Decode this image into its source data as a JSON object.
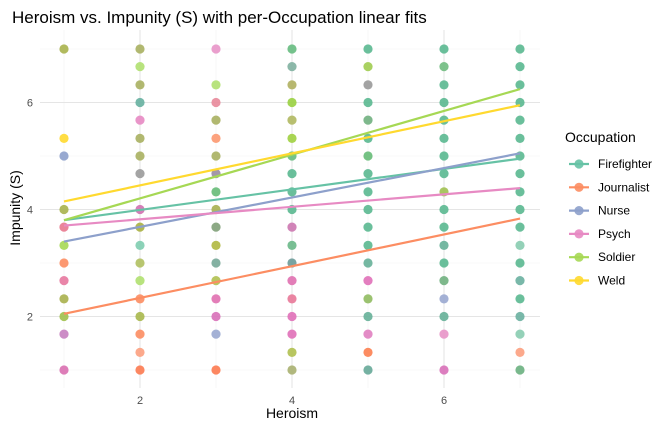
{
  "chart_data": {
    "type": "scatter",
    "title": "Heroism vs. Impunity (S) with per-Occupation linear fits",
    "xlabel": "Heroism",
    "ylabel": "Impunity (S)",
    "xlim": [
      0.7,
      7.3
    ],
    "ylim": [
      0.7,
      7.3
    ],
    "xticks": [
      2,
      4,
      6
    ],
    "yticks": [
      2,
      4,
      6
    ],
    "grid": true,
    "legend": {
      "title": "Occupation",
      "placement": "right"
    },
    "series": [
      {
        "name": "Firefighter",
        "color": "#66c2a5",
        "fit": [
          [
            1,
            3.8
          ],
          [
            7,
            4.95
          ]
        ]
      },
      {
        "name": "Journalist",
        "color": "#fc8d62",
        "fit": [
          [
            1,
            2.05
          ],
          [
            7,
            3.83
          ]
        ]
      },
      {
        "name": "Nurse",
        "color": "#8da0cb",
        "fit": [
          [
            1,
            3.4
          ],
          [
            7,
            5.05
          ]
        ]
      },
      {
        "name": "Psych",
        "color": "#e78ac3",
        "fit": [
          [
            1,
            3.7
          ],
          [
            7,
            4.4
          ]
        ]
      },
      {
        "name": "Soldier",
        "color": "#a6d854",
        "fit": [
          [
            1,
            3.8
          ],
          [
            7,
            6.25
          ]
        ]
      },
      {
        "name": "Weld",
        "color": "#ffd92f",
        "fit": [
          [
            1,
            4.15
          ],
          [
            7,
            5.95
          ]
        ]
      }
    ],
    "points": [
      [
        1,
        7,
        "#a8b24c"
      ],
      [
        1,
        5.33,
        "#ffd92f"
      ],
      [
        1,
        5,
        "#8da0cb"
      ],
      [
        1,
        4,
        "#a8b24c"
      ],
      [
        1,
        3.67,
        "#e8788e"
      ],
      [
        1,
        3.33,
        "#a6d854"
      ],
      [
        1,
        3,
        "#fc8d62"
      ],
      [
        1,
        2.67,
        "#e7789f"
      ],
      [
        1,
        2.33,
        "#a8b04c"
      ],
      [
        1,
        2,
        "#a0c04c"
      ],
      [
        1,
        1.67,
        "#c77fc0"
      ],
      [
        1,
        1,
        "#d96fb0"
      ],
      [
        2,
        7,
        "#a8b060"
      ],
      [
        2,
        6.67,
        "#b0e070"
      ],
      [
        2,
        6.33,
        "#a8b060"
      ],
      [
        2,
        6,
        "#66b0a0"
      ],
      [
        2,
        5.67,
        "#e78ac3"
      ],
      [
        2,
        5.33,
        "#a8b060"
      ],
      [
        2,
        5,
        "#a8b060"
      ],
      [
        2,
        4.67,
        "#9a9a9a"
      ],
      [
        2,
        4,
        "#d070b0"
      ],
      [
        2,
        3.67,
        "#a8b040"
      ],
      [
        2,
        3.33,
        "#7fcdb0"
      ],
      [
        2,
        3,
        "#b0c060"
      ],
      [
        2,
        2.67,
        "#b0e070"
      ],
      [
        2,
        2.33,
        "#fc8d62"
      ],
      [
        2,
        2,
        "#a8b84c"
      ],
      [
        2,
        1.67,
        "#fc8d62"
      ],
      [
        2,
        1.33,
        "#fca080"
      ],
      [
        2,
        1,
        "#fc7a50"
      ],
      [
        3,
        7,
        "#e895c8"
      ],
      [
        3,
        6.33,
        "#b0e070"
      ],
      [
        3,
        6,
        "#e8889a"
      ],
      [
        3,
        5.67,
        "#a8b060"
      ],
      [
        3,
        5.33,
        "#fc9870"
      ],
      [
        3,
        5,
        "#a8b060"
      ],
      [
        3,
        4.67,
        "#9a8ca0"
      ],
      [
        3,
        4.33,
        "#66bb77"
      ],
      [
        3,
        4,
        "#a8b050"
      ],
      [
        3,
        3.67,
        "#80a078"
      ],
      [
        3,
        3.33,
        "#b0b840"
      ],
      [
        3,
        3,
        "#77a898"
      ],
      [
        3,
        2.67,
        "#b0c050"
      ],
      [
        3,
        2.33,
        "#e070b0"
      ],
      [
        3,
        2,
        "#d870b8"
      ],
      [
        3,
        1.67,
        "#9aa8d0"
      ],
      [
        3,
        1,
        "#fc7a50"
      ],
      [
        4,
        7,
        "#66bb80"
      ],
      [
        4,
        6.67,
        "#80b0a0"
      ],
      [
        4,
        6.33,
        "#b0b060"
      ],
      [
        4,
        6,
        "#99d040"
      ],
      [
        4,
        5.67,
        "#b0b860"
      ],
      [
        4,
        5.33,
        "#a0d040"
      ],
      [
        4,
        5,
        "#66bb80"
      ],
      [
        4,
        4.67,
        "#5ab890"
      ],
      [
        4,
        4.33,
        "#5ab890"
      ],
      [
        4,
        4,
        "#5ab890"
      ],
      [
        4,
        3.67,
        "#cc77b0"
      ],
      [
        4,
        3.33,
        "#6ab888"
      ],
      [
        4,
        3,
        "#6a9a98"
      ],
      [
        4,
        2.67,
        "#e070b0"
      ],
      [
        4,
        2.33,
        "#e87898"
      ],
      [
        4,
        2,
        "#e070b8"
      ],
      [
        4,
        1.67,
        "#e070b8"
      ],
      [
        4,
        1.33,
        "#b0c050"
      ],
      [
        4,
        1,
        "#a8b070"
      ],
      [
        5,
        7,
        "#5ab890"
      ],
      [
        5,
        6.67,
        "#a0cc50"
      ],
      [
        5,
        6.33,
        "#999999"
      ],
      [
        5,
        6,
        "#5ab890"
      ],
      [
        5,
        5.67,
        "#70b080"
      ],
      [
        5,
        5.33,
        "#5ab890"
      ],
      [
        5,
        5,
        "#66bb77"
      ],
      [
        5,
        4.67,
        "#5ab890"
      ],
      [
        5,
        4.33,
        "#5ab890"
      ],
      [
        5,
        4,
        "#5ab890"
      ],
      [
        5,
        3.67,
        "#5ab890"
      ],
      [
        5,
        3.33,
        "#5ab890"
      ],
      [
        5,
        3,
        "#66b098"
      ],
      [
        5,
        2.67,
        "#e070b8"
      ],
      [
        5,
        2.33,
        "#90bb60"
      ],
      [
        5,
        2,
        "#66b098"
      ],
      [
        5,
        1.67,
        "#e080c0"
      ],
      [
        5,
        1.33,
        "#fc8050"
      ],
      [
        5,
        1,
        "#66a898"
      ],
      [
        6,
        7,
        "#5ab890"
      ],
      [
        6,
        6.67,
        "#70bb80"
      ],
      [
        6,
        6.33,
        "#5ab890"
      ],
      [
        6,
        6,
        "#5ab890"
      ],
      [
        6,
        5.67,
        "#5ab890"
      ],
      [
        6,
        5.33,
        "#5ab890"
      ],
      [
        6,
        5,
        "#5ab890"
      ],
      [
        6,
        4.67,
        "#5ab890"
      ],
      [
        6,
        4.33,
        "#a0c050"
      ],
      [
        6,
        4,
        "#5ab890"
      ],
      [
        6,
        3.67,
        "#5ab890"
      ],
      [
        6,
        3.33,
        "#66b098"
      ],
      [
        6,
        3,
        "#5ab890"
      ],
      [
        6,
        2.67,
        "#70b080"
      ],
      [
        6,
        2.33,
        "#9aa8d0"
      ],
      [
        6,
        2,
        "#66b098"
      ],
      [
        6,
        1.67,
        "#e895c8"
      ],
      [
        6,
        1,
        "#d870b8"
      ],
      [
        7,
        7,
        "#5ab890"
      ],
      [
        7,
        6.67,
        "#5ab890"
      ],
      [
        7,
        6.33,
        "#5ab890"
      ],
      [
        7,
        6,
        "#5ab890"
      ],
      [
        7,
        5.67,
        "#5ab890"
      ],
      [
        7,
        5.33,
        "#5ab890"
      ],
      [
        7,
        5,
        "#5ab890"
      ],
      [
        7,
        4.67,
        "#5ab890"
      ],
      [
        7,
        4.33,
        "#5ab890"
      ],
      [
        7,
        4,
        "#5ab890"
      ],
      [
        7,
        3.67,
        "#5ab890"
      ],
      [
        7,
        3.33,
        "#88ccb0"
      ],
      [
        7,
        3,
        "#5ab890"
      ],
      [
        7,
        2.67,
        "#6ab0a0"
      ],
      [
        7,
        2.33,
        "#5ab890"
      ],
      [
        7,
        2,
        "#6ab0a0"
      ],
      [
        7,
        1.67,
        "#88ccb0"
      ],
      [
        7,
        1.33,
        "#fca080"
      ],
      [
        7,
        1,
        "#6ab080"
      ]
    ]
  }
}
